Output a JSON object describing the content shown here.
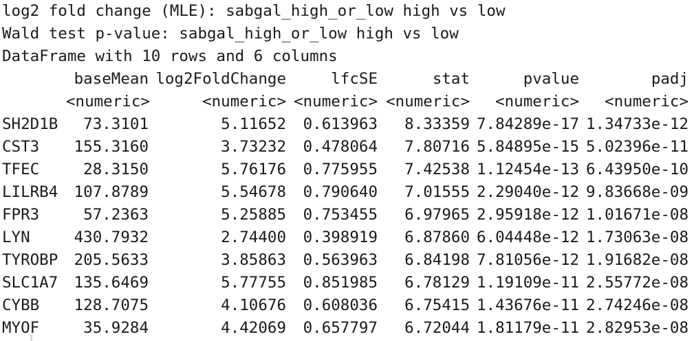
{
  "header": {
    "line1": "log2 fold change (MLE): sabgal_high_or_low high vs low",
    "line2": "Wald test p-value: sabgal_high_or_low high vs low",
    "line3": "DataFrame with 10 rows and 6 columns"
  },
  "table": {
    "columns": [
      "baseMean",
      "log2FoldChange",
      "lfcSE",
      "stat",
      "pvalue",
      "padj"
    ],
    "types": [
      "<numeric>",
      "<numeric>",
      "<numeric>",
      "<numeric>",
      "<numeric>",
      "<numeric>"
    ],
    "rows": [
      {
        "name": "SH2D1B",
        "values": [
          "73.3101",
          "5.11652",
          "0.613963",
          "8.33359",
          "7.84289e-17",
          "1.34733e-12"
        ]
      },
      {
        "name": "CST3",
        "values": [
          "155.3160",
          "3.73232",
          "0.478064",
          "7.80716",
          "5.84895e-15",
          "5.02396e-11"
        ]
      },
      {
        "name": "TFEC",
        "values": [
          "28.3150",
          "5.76176",
          "0.775955",
          "7.42538",
          "1.12454e-13",
          "6.43950e-10"
        ]
      },
      {
        "name": "LILRB4",
        "values": [
          "107.8789",
          "5.54678",
          "0.790640",
          "7.01555",
          "2.29040e-12",
          "9.83668e-09"
        ]
      },
      {
        "name": "FPR3",
        "values": [
          "57.2363",
          "5.25885",
          "0.753455",
          "6.97965",
          "2.95918e-12",
          "1.01671e-08"
        ]
      },
      {
        "name": "LYN",
        "values": [
          "430.7932",
          "2.74400",
          "0.398919",
          "6.87860",
          "6.04448e-12",
          "1.73063e-08"
        ]
      },
      {
        "name": "TYROBP",
        "values": [
          "205.5633",
          "3.85863",
          "0.563963",
          "6.84198",
          "7.81056e-12",
          "1.91682e-08"
        ]
      },
      {
        "name": "SLC1A7",
        "values": [
          "135.6469",
          "5.77755",
          "0.851985",
          "6.78129",
          "1.19109e-11",
          "2.55772e-08"
        ]
      },
      {
        "name": "CYBB",
        "values": [
          "128.7075",
          "4.10676",
          "0.608036",
          "6.75415",
          "1.43676e-11",
          "2.74246e-08"
        ]
      },
      {
        "name": "MYOF",
        "values": [
          "35.9284",
          "4.42069",
          "0.657797",
          "6.72044",
          "1.81179e-11",
          "2.82953e-08"
        ]
      }
    ]
  }
}
